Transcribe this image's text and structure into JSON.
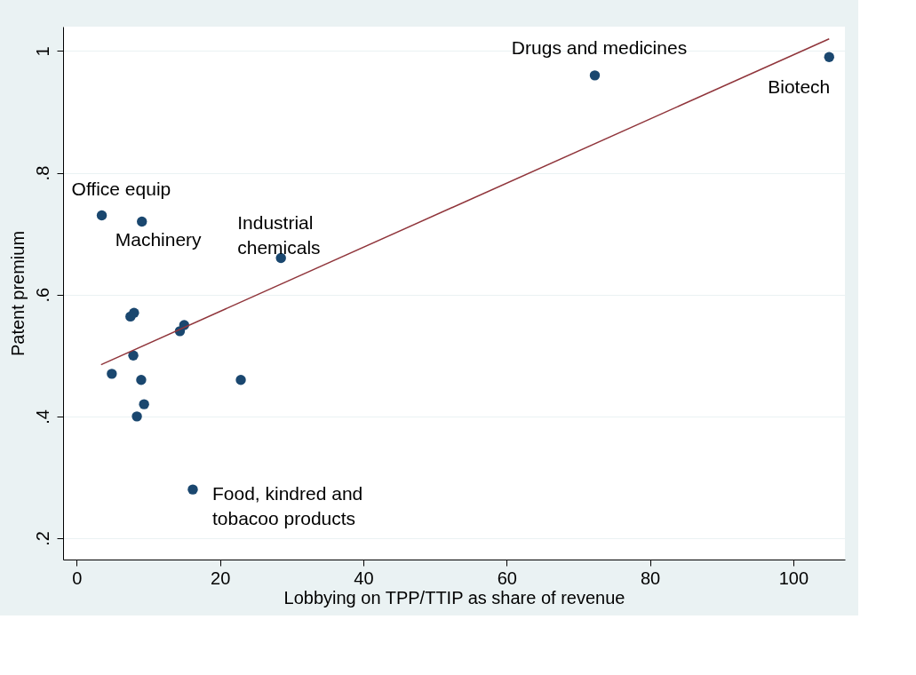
{
  "chart_data": {
    "type": "scatter",
    "xlabel": "Lobbying on TPP/TTIP as share of revenue",
    "ylabel": "Patent premium",
    "xlim": [
      -1.9,
      107.2
    ],
    "ylim": [
      0.165,
      1.04
    ],
    "xticks": [
      0,
      20,
      40,
      60,
      80,
      100
    ],
    "yticks": [
      {
        "value": 0.2,
        "label": ".2"
      },
      {
        "value": 0.4,
        "label": ".4"
      },
      {
        "value": 0.6,
        "label": ".6"
      },
      {
        "value": 0.8,
        "label": ".8"
      },
      {
        "value": 1,
        "label": "1"
      }
    ],
    "grid": "y",
    "series": [
      {
        "marker": "circle",
        "color": "#1a476f",
        "x": [
          3.5,
          9.1,
          28.5,
          72.3,
          105,
          16.2,
          7.5,
          8.0,
          7.9,
          4.9,
          9.0,
          9.4,
          8.4,
          14.4,
          15.0,
          22.9
        ],
        "values": [
          0.73,
          0.72,
          0.66,
          0.96,
          0.99,
          0.28,
          0.564,
          0.57,
          0.5,
          0.47,
          0.46,
          0.42,
          0.4,
          0.54,
          0.55,
          0.46
        ]
      },
      {
        "type": "line",
        "color": "#90353b",
        "line_style": "solid",
        "marker": "none",
        "x": [
          3.4,
          105
        ],
        "values": [
          0.485,
          1.02
        ]
      }
    ],
    "annotations": [
      {
        "text": "Office equip",
        "x": 3.5,
        "y": 0.73
      },
      {
        "text": "Machinery",
        "x": 9.1,
        "y": 0.72
      },
      {
        "text": "Industrial\nchemicals",
        "x": 28.5,
        "y": 0.66
      },
      {
        "text": "Drugs and medicines",
        "x": 72.3,
        "y": 0.96
      },
      {
        "text": "Biotech",
        "x": 105,
        "y": 0.99
      },
      {
        "text": "Food, kindred and\ntobacoo products",
        "x": 16.2,
        "y": 0.28
      }
    ]
  }
}
